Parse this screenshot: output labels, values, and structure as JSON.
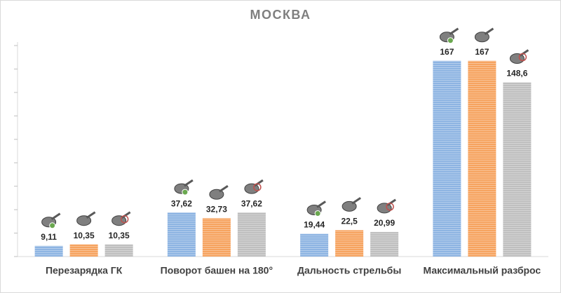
{
  "chart_data": {
    "type": "bar",
    "title": "МОСКВА",
    "categories": [
      "Перезарядка ГК",
      "Поворот башен на 180°",
      "Дальность стрельбы",
      "Максимальный разброс"
    ],
    "series": [
      {
        "color": "#8db4e2",
        "values": [
          9.11,
          37.62,
          19.44,
          167
        ],
        "value_labels": [
          "9,11",
          "37,62",
          "19,44",
          "167"
        ]
      },
      {
        "color": "#f6a35f",
        "values": [
          10.35,
          32.73,
          22.5,
          167
        ],
        "value_labels": [
          "10,35",
          "32,73",
          "22,5",
          "167"
        ]
      },
      {
        "color": "#bfbfbf",
        "values": [
          10.35,
          37.62,
          20.99,
          148.6
        ],
        "value_labels": [
          "10,35",
          "37,62",
          "20,99",
          "148,6"
        ]
      }
    ],
    "ylim": [
      0,
      180
    ],
    "yticks": [
      0,
      20,
      40,
      60,
      80,
      100,
      120,
      140,
      160,
      180
    ]
  }
}
